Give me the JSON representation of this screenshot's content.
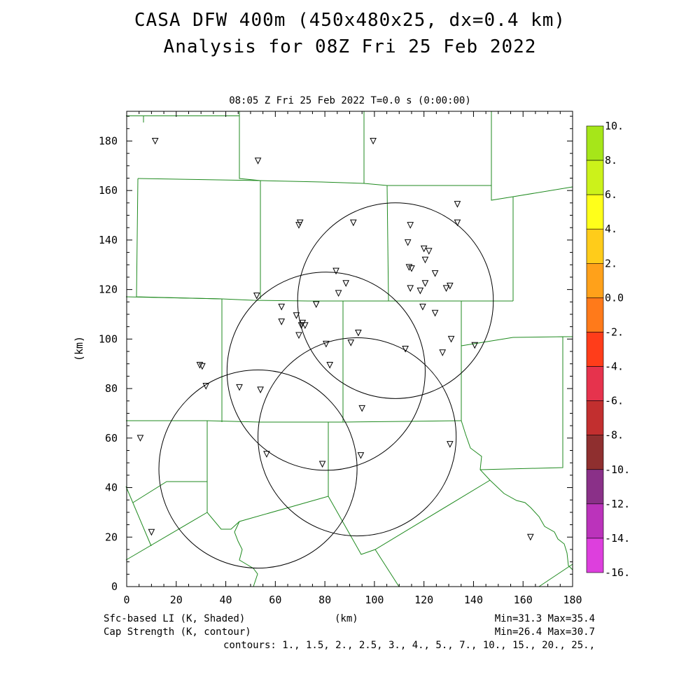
{
  "title": {
    "line1": "CASA DFW 400m (450x480x25, dx=0.4 km)",
    "line2": "Analysis for 08Z Fri 25 Feb 2022"
  },
  "timestamp": "08:05 Z Fri 25 Feb 2022    T=0.0 s (0:00:00)",
  "axes": {
    "xlabel": "(km)",
    "ylabel": "(km)",
    "xticks": [
      "0",
      "20",
      "40",
      "60",
      "80",
      "100",
      "120",
      "140",
      "160",
      "180"
    ],
    "yticks": [
      "0",
      "20",
      "40",
      "60",
      "80",
      "100",
      "120",
      "140",
      "160",
      "180"
    ],
    "xrange": [
      0,
      180
    ],
    "yrange": [
      0,
      192
    ]
  },
  "colorbar": {
    "labels": [
      "10.",
      "8.",
      "6.",
      "4.",
      "2.",
      "0.0",
      "-2.",
      "-4.",
      "-6.",
      "-8.",
      "-10.",
      "-12.",
      "-14.",
      "-16."
    ],
    "colors": [
      "#a6e619",
      "#ccf21a",
      "#ffff1a",
      "#ffcc1a",
      "#ffa11a",
      "#ff7a1a",
      "#ff3d1a",
      "#e6334d",
      "#c22f2f",
      "#8f2f2f",
      "#8a3088",
      "#bb33bb",
      "#dd3fdd"
    ]
  },
  "footer": {
    "left1": "Sfc-based LI (K, Shaded)",
    "left2": "Cap Strength (K, contour)",
    "center": "(km)",
    "right1": "Min=31.3 Max=35.4",
    "right2": "Min=26.4 Max=30.7",
    "right3": "contours: 1., 1.5, 2., 2.5, 3., 4., 5., 7., 10., 15., 20., 25.,"
  },
  "radars": [
    {
      "x": 108.5,
      "y": 115.5,
      "r": 39.5
    },
    {
      "x": 80.5,
      "y": 87.0,
      "r": 40.0
    },
    {
      "x": 93.0,
      "y": 60.5,
      "r": 40.0
    },
    {
      "x": 53.0,
      "y": 47.5,
      "r": 40.0
    }
  ],
  "stations": [
    [
      11.5,
      180
    ],
    [
      53,
      172
    ],
    [
      99.5,
      180
    ],
    [
      69.5,
      146
    ],
    [
      70,
      147
    ],
    [
      91.5,
      147
    ],
    [
      133.5,
      154.5
    ],
    [
      133.5,
      147
    ],
    [
      114.5,
      146
    ],
    [
      113.5,
      139
    ],
    [
      120,
      136.5
    ],
    [
      122,
      135.5
    ],
    [
      120.5,
      132
    ],
    [
      114,
      129
    ],
    [
      115,
      128.5
    ],
    [
      124.5,
      126.5
    ],
    [
      84.5,
      127.5
    ],
    [
      88.5,
      122.5
    ],
    [
      120.5,
      122.5
    ],
    [
      114.5,
      120.5
    ],
    [
      118.5,
      119.5
    ],
    [
      129,
      120.5
    ],
    [
      130.5,
      121.5
    ],
    [
      85.5,
      118.5
    ],
    [
      52.5,
      117.5
    ],
    [
      62.5,
      113
    ],
    [
      76.5,
      114
    ],
    [
      119.5,
      113
    ],
    [
      124.5,
      110.5
    ],
    [
      68.5,
      109.5
    ],
    [
      71,
      106.5
    ],
    [
      72,
      105.5
    ],
    [
      62.5,
      107
    ],
    [
      70.5,
      105.5
    ],
    [
      93.5,
      102.5
    ],
    [
      69.5,
      101.5
    ],
    [
      131,
      100
    ],
    [
      80.5,
      98
    ],
    [
      90.5,
      98.5
    ],
    [
      112.5,
      96
    ],
    [
      140.5,
      97.5
    ],
    [
      127.5,
      94.5
    ],
    [
      29.5,
      89.5
    ],
    [
      30.5,
      89
    ],
    [
      82,
      89.5
    ],
    [
      32,
      81
    ],
    [
      45.5,
      80.5
    ],
    [
      54,
      79.5
    ],
    [
      95,
      72
    ],
    [
      5.5,
      60
    ],
    [
      130.5,
      57.5
    ],
    [
      56.5,
      53.5
    ],
    [
      94.5,
      53
    ],
    [
      79,
      49.5
    ],
    [
      10,
      22
    ],
    [
      163,
      20
    ]
  ],
  "boundaries": [
    [
      [
        180,
        165.5
      ],
      [
        205,
        165.5
      ],
      [
        205,
        175
      ],
      [
        205,
        165.5
      ],
      [
        342,
        165.5
      ]
    ],
    [
      [
        342,
        159
      ],
      [
        342,
        255
      ],
      [
        372,
        258
      ]
    ],
    [
      [
        197,
        255
      ],
      [
        372,
        258
      ],
      [
        460,
        260
      ],
      [
        520,
        262
      ],
      [
        553,
        265
      ],
      [
        702,
        265
      ]
    ],
    [
      [
        520,
        159
      ],
      [
        520,
        262
      ]
    ],
    [
      [
        702,
        159
      ],
      [
        702,
        286
      ],
      [
        733,
        281
      ],
      [
        818,
        267
      ]
    ],
    [
      [
        197,
        255
      ],
      [
        195,
        424
      ],
      [
        317,
        427
      ]
    ],
    [
      [
        372,
        258
      ],
      [
        372,
        427
      ]
    ],
    [
      [
        553,
        265
      ],
      [
        555,
        430
      ]
    ],
    [
      [
        733,
        281
      ],
      [
        733,
        430
      ]
    ],
    [
      [
        180,
        424
      ],
      [
        317,
        427
      ],
      [
        362,
        429
      ],
      [
        440,
        430
      ],
      [
        490,
        430
      ],
      [
        555,
        430
      ],
      [
        620,
        430
      ],
      [
        659,
        430
      ],
      [
        733,
        430
      ]
    ],
    [
      [
        317,
        427
      ],
      [
        317,
        603
      ]
    ],
    [
      [
        490,
        430
      ],
      [
        490,
        603
      ]
    ],
    [
      [
        659,
        430
      ],
      [
        659,
        601
      ]
    ],
    [
      [
        659,
        494
      ],
      [
        733,
        482
      ],
      [
        804,
        481
      ],
      [
        804,
        668
      ],
      [
        686,
        671
      ]
    ],
    [
      [
        804,
        481
      ],
      [
        818,
        481
      ]
    ],
    [
      [
        180,
        601
      ],
      [
        296,
        601
      ],
      [
        372,
        603
      ],
      [
        490,
        603
      ],
      [
        580,
        602
      ],
      [
        659,
        601
      ]
    ],
    [
      [
        296,
        601
      ],
      [
        296,
        688
      ],
      [
        238,
        688
      ],
      [
        190,
        718
      ]
    ],
    [
      [
        296,
        688
      ],
      [
        296,
        732
      ]
    ],
    [
      [
        180,
        695
      ],
      [
        216,
        780
      ]
    ],
    [
      [
        180,
        800
      ],
      [
        296,
        732
      ],
      [
        316,
        756
      ],
      [
        330,
        756
      ],
      [
        342,
        745
      ],
      [
        469,
        709
      ],
      [
        469,
        603
      ]
    ],
    [
      [
        469,
        709
      ],
      [
        516,
        792
      ],
      [
        536,
        785
      ],
      [
        700,
        686
      ]
    ],
    [
      [
        659,
        601
      ],
      [
        665,
        620
      ],
      [
        672,
        640
      ],
      [
        688,
        652
      ],
      [
        686,
        671
      ],
      [
        700,
        686
      ],
      [
        720,
        705
      ],
      [
        738,
        715
      ],
      [
        750,
        718
      ],
      [
        758,
        725
      ],
      [
        770,
        738
      ],
      [
        778,
        752
      ],
      [
        792,
        760
      ],
      [
        797,
        770
      ],
      [
        806,
        777
      ],
      [
        810,
        790
      ],
      [
        812,
        808
      ],
      [
        818,
        814
      ]
    ],
    [
      [
        536,
        785
      ],
      [
        570,
        838
      ]
    ],
    [
      [
        342,
        745
      ],
      [
        335,
        760
      ],
      [
        340,
        773
      ],
      [
        346,
        785
      ],
      [
        342,
        800
      ],
      [
        352,
        806
      ],
      [
        362,
        812
      ],
      [
        368,
        820
      ],
      [
        362,
        838
      ]
    ],
    [
      [
        770,
        838
      ],
      [
        818,
        806
      ]
    ]
  ]
}
